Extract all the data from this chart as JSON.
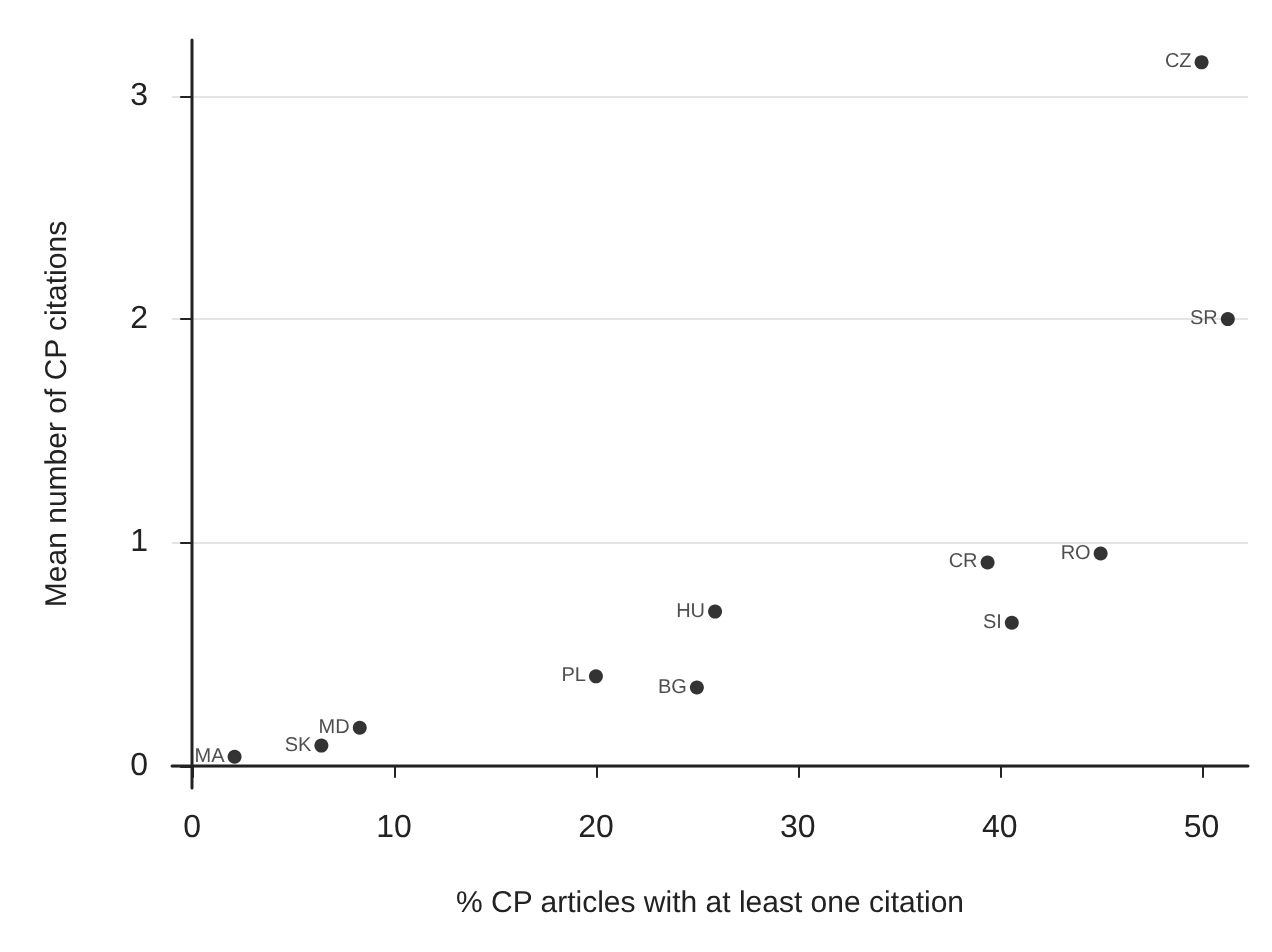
{
  "chart_data": {
    "type": "scatter",
    "xlabel": "% CP articles with at least one citation",
    "ylabel": "Mean number of CP citations",
    "x": [
      50,
      51.3,
      45,
      39.4,
      40.6,
      25.9,
      20,
      25,
      8.3,
      6.4,
      2.1
    ],
    "series": [
      {
        "color": "#000000",
        "values": [
          3.15,
          2.0,
          0.95,
          0.91,
          0.64,
          0.69,
          0.4,
          0.35,
          0.17,
          0.09,
          0.04
        ]
      }
    ],
    "annotations": [
      {
        "text": "CZ",
        "x": 50,
        "y": 3.15
      },
      {
        "text": "SR",
        "x": 51.3,
        "y": 2.0
      },
      {
        "text": "RO",
        "x": 45,
        "y": 0.95
      },
      {
        "text": "CR",
        "x": 39.4,
        "y": 0.91
      },
      {
        "text": "SI",
        "x": 40.6,
        "y": 0.64
      },
      {
        "text": "HU",
        "x": 25.9,
        "y": 0.69
      },
      {
        "text": "PL",
        "x": 20,
        "y": 0.4
      },
      {
        "text": "BG",
        "x": 25,
        "y": 0.35
      },
      {
        "text": "MD",
        "x": 8.3,
        "y": 0.17
      },
      {
        "text": "SK",
        "x": 6.4,
        "y": 0.09
      },
      {
        "text": "MA",
        "x": 2.1,
        "y": 0.04
      }
    ],
    "xlim": [
      -1,
      52.3
    ],
    "ylim": [
      -0.1,
      3.25
    ],
    "xticks": [
      0,
      10,
      20,
      30,
      40,
      50
    ],
    "yticks": [
      0,
      1,
      2,
      3
    ],
    "grid": "y",
    "marker": "circle"
  }
}
